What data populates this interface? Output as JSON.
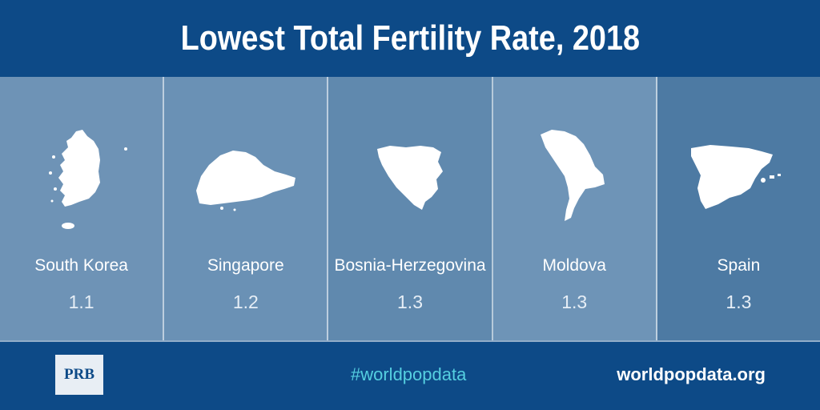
{
  "chart_data": {
    "type": "bar",
    "title": "Lowest Total Fertility Rate, 2018",
    "categories": [
      "South Korea",
      "Singapore",
      "Bosnia-Herzegovina",
      "Moldova",
      "Spain"
    ],
    "values": [
      1.1,
      1.2,
      1.3,
      1.3,
      1.3
    ],
    "value_labels": [
      "1.1",
      "1.2",
      "1.3",
      "1.3",
      "1.3"
    ],
    "panel_colors": [
      "#6e93b6",
      "#6a91b5",
      "#6089ae",
      "#6e94b7",
      "#4d7aa3"
    ],
    "shape_color": "#ffffff"
  },
  "footer": {
    "logo": "PRB",
    "hashtag": "#worldpopdata",
    "site": "worldpopdata.org"
  },
  "colors": {
    "background": "#0d4a87",
    "hashtag": "#55cfe0"
  }
}
